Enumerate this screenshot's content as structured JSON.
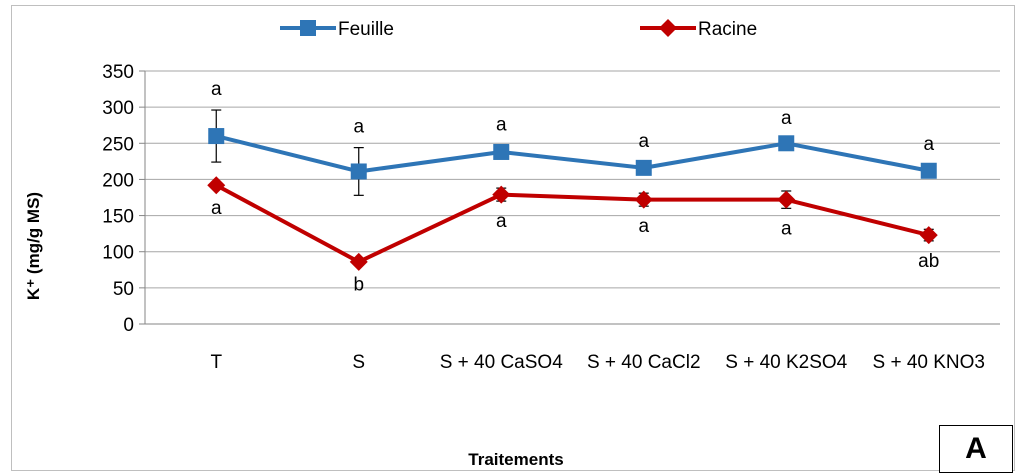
{
  "chart_data": {
    "type": "line",
    "categories": [
      "T",
      "S",
      "S + 40 CaSO4",
      "S + 40 CaCl2",
      "S + 40 K2SO4",
      "S + 40 KNO3"
    ],
    "xlabel": "Traitements",
    "ylabel": "K⁺ (mg/g MS)",
    "ylim": [
      0,
      350
    ],
    "yticks": [
      0,
      50,
      100,
      150,
      200,
      250,
      300,
      350
    ],
    "grid": "horizontal",
    "legend": "top",
    "series": [
      {
        "name": "Feuille",
        "color": "#2E75B6",
        "marker": "square",
        "values": [
          260,
          211,
          238,
          216,
          250,
          212
        ],
        "errors": [
          36,
          33,
          9,
          8,
          6,
          8
        ],
        "labels": [
          "a",
          "a",
          "a",
          "a",
          "a",
          "a"
        ]
      },
      {
        "name": "Racine",
        "color": "#C00000",
        "marker": "diamond",
        "values": [
          192,
          86,
          179,
          172,
          172,
          123
        ],
        "errors": [
          4,
          4,
          9,
          9,
          12,
          8
        ],
        "labels": [
          "a",
          "b",
          "a",
          "a",
          "a",
          "ab"
        ]
      }
    ]
  },
  "panel_label": "A"
}
